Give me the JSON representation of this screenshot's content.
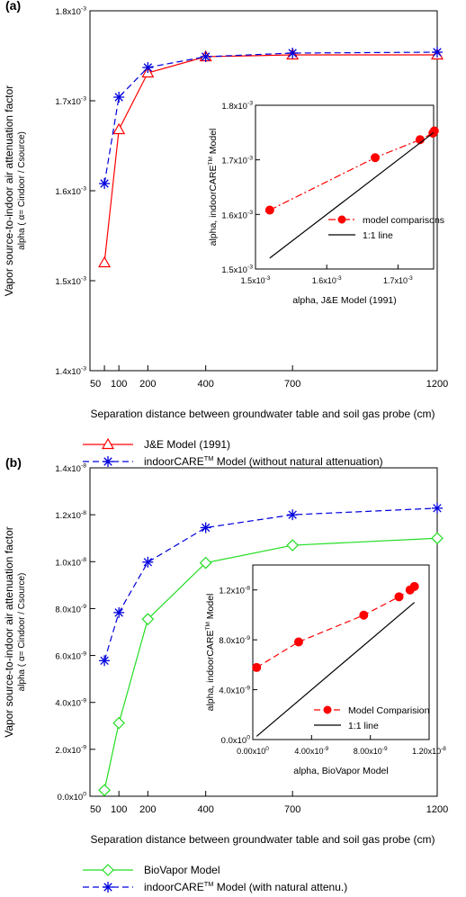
{
  "figure": {
    "panels": [
      {
        "label": "(a)",
        "ylabel_main": "Vapor source-to-indoor air attenuation factor",
        "ylabel_sub": "alpha ( α= Cindoor / Csource)",
        "xlabel": "Separation distance between groundwater table and soil gas probe (cm)",
        "inset": {
          "ylabel": "alpha, indoorCARE™ Model",
          "xlabel": "alpha, J&E Model (1991)"
        },
        "legend": [
          "J&E Model (1991)",
          "indoorCARE™ Model (without natural attenuation)"
        ]
      },
      {
        "label": "(b)",
        "ylabel_main": "Vapor source-to-indoor air attenuation factor",
        "ylabel_sub": "alpha ( α= Cindoor / Csource)",
        "xlabel": "Separation distance between groundwater table and soil gas probe (cm)",
        "inset": {
          "ylabel": "alpha, indoorCARE™ Model",
          "xlabel": "alpha, BioVapor Model"
        },
        "legend": [
          "BioVapor Model",
          "indoorCARE™ Model (with natural attenu.)"
        ]
      }
    ]
  },
  "colors": {
    "red": "#ff0000",
    "blue": "#0000dd",
    "green": "#22dd22",
    "black": "#000000"
  },
  "chart_data": [
    {
      "type": "line",
      "title": "",
      "xlabel": "Separation distance between groundwater table and soil gas probe (cm)",
      "ylabel": "alpha ( α= Cindoor / Csource)",
      "xlim": [
        0,
        1200
      ],
      "xticks": [
        50,
        100,
        200,
        400,
        700,
        1200
      ],
      "xtick_labels": [
        "50",
        "100",
        "200",
        "400",
        "700",
        "1200"
      ],
      "ylim": [
        0.0014,
        0.0018
      ],
      "yticks": [
        0.0014,
        0.0015,
        0.0016,
        0.0017,
        0.0018
      ],
      "ytick_labels": [
        "1.4x10-3",
        "1.5x10-3",
        "1.6x10-3",
        "1.7x10-3",
        "1.8x10-3"
      ],
      "x": [
        50,
        100,
        200,
        400,
        700,
        1200
      ],
      "series": [
        {
          "name": "J&E Model (1991)",
          "color": "#ff0000",
          "marker": "triangle",
          "line": "solid",
          "values": [
            0.00152,
            0.001668,
            0.001731,
            0.001749,
            0.001751,
            0.001751
          ]
        },
        {
          "name": "indoorCARE™ Model (without natural attenuation)",
          "color": "#0000dd",
          "marker": "star",
          "line": "dashed",
          "values": [
            0.001608,
            0.001704,
            0.001737,
            0.001749,
            0.001753,
            0.001754
          ]
        }
      ],
      "legend_position": "below"
    },
    {
      "type": "scatter",
      "inset_of": "(a)",
      "xlabel": "alpha, J&E Model (1991)",
      "ylabel": "alpha, indoorCARE™ Model",
      "xlim": [
        0.0015,
        0.00175
      ],
      "xticks": [
        0.0015,
        0.0016,
        0.0017
      ],
      "xtick_labels": [
        "1.5x10-3",
        "1.6x10-3",
        "1.7x10-3"
      ],
      "ylim": [
        0.0015,
        0.0018
      ],
      "yticks": [
        0.0015,
        0.0016,
        0.0017,
        0.0018
      ],
      "ytick_labels": [
        "1.5x10-3",
        "1.6x10-3",
        "1.7x10-3",
        "1.8x10-3"
      ],
      "series": [
        {
          "name": "model comparisons",
          "color": "#ff0000",
          "marker": "circle",
          "line": "dashdot",
          "x": [
            0.00152,
            0.001668,
            0.001731,
            0.001749,
            0.001751
          ],
          "y": [
            0.001608,
            0.001704,
            0.001737,
            0.001749,
            0.001753
          ]
        },
        {
          "name": "1:1 line",
          "color": "#000000",
          "marker": "none",
          "line": "solid",
          "x": [
            0.00152,
            0.00175
          ],
          "y": [
            0.00152,
            0.00175
          ]
        }
      ],
      "legend_position": "right"
    },
    {
      "type": "line",
      "title": "",
      "xlabel": "Separation distance between groundwater table and soil gas probe (cm)",
      "ylabel": "alpha ( α= Cindoor / Csource)",
      "xlim": [
        0,
        1200
      ],
      "xticks": [
        50,
        100,
        200,
        400,
        700,
        1200
      ],
      "xtick_labels": [
        "50",
        "100",
        "200",
        "400",
        "700",
        "1200"
      ],
      "ylim": [
        0,
        1.4e-08
      ],
      "yticks": [
        0,
        2e-09,
        4e-09,
        6e-09,
        8e-09,
        1e-08,
        1.2e-08,
        1.4e-08
      ],
      "ytick_labels": [
        "0.0x100",
        "2.0x10-9",
        "4.0x10-9",
        "6.0x10-9",
        "8.0x10-9",
        "1.0x10-8",
        "1.2x10-8",
        "1.4x10-8"
      ],
      "x": [
        50,
        100,
        200,
        400,
        700,
        1200
      ],
      "series": [
        {
          "name": "BioVapor Model",
          "color": "#22dd22",
          "marker": "diamond",
          "line": "solid",
          "values": [
            2.6e-10,
            3.12e-09,
            7.55e-09,
            9.95e-09,
            1.07e-08,
            1.1e-08
          ]
        },
        {
          "name": "indoorCARE™ Model (with natural attenu.)",
          "color": "#0000dd",
          "marker": "star",
          "line": "dashed",
          "values": [
            5.78e-09,
            7.83e-09,
            9.98e-09,
            1.145e-08,
            1.2e-08,
            1.228e-08
          ]
        }
      ],
      "legend_position": "below"
    },
    {
      "type": "scatter",
      "inset_of": "(b)",
      "xlabel": "alpha, BioVapor Model",
      "ylabel": "alpha, indoorCARE™ Model",
      "xlim": [
        0,
        1.2e-08
      ],
      "xticks": [
        0,
        4e-09,
        8e-09,
        1.2e-08
      ],
      "xtick_labels": [
        "0.00x100",
        "4.00x10-9",
        "8.00x10-9",
        "1.20x10-8"
      ],
      "ylim": [
        0,
        1.4e-08
      ],
      "yticks": [
        0,
        4e-09,
        8e-09,
        1.2e-08
      ],
      "ytick_labels": [
        "0.0x100",
        "4.0x10-9",
        "8.0x10-9",
        "1.2x10-8"
      ],
      "series": [
        {
          "name": "Model Comparision",
          "color": "#ff0000",
          "marker": "circle",
          "line": "dashed",
          "x": [
            2.6e-10,
            3.12e-09,
            7.55e-09,
            9.95e-09,
            1.07e-08,
            1.1e-08
          ],
          "y": [
            5.78e-09,
            7.83e-09,
            9.98e-09,
            1.145e-08,
            1.2e-08,
            1.228e-08
          ]
        },
        {
          "name": "1:1 line",
          "color": "#000000",
          "marker": "none",
          "line": "solid",
          "x": [
            2.6e-10,
            1.1e-08
          ],
          "y": [
            2.6e-10,
            1.1e-08
          ]
        }
      ],
      "legend_position": "right"
    }
  ]
}
